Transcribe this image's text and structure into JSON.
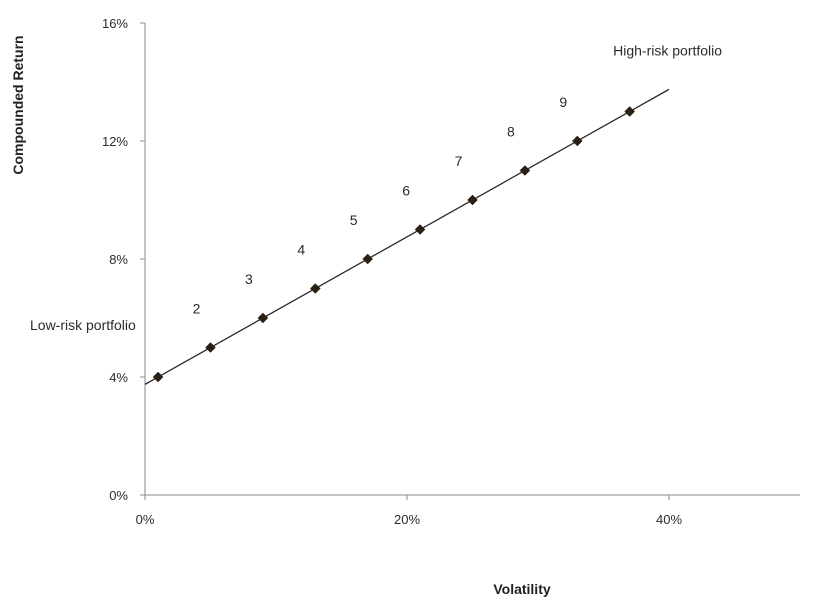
{
  "chart_data": {
    "type": "scatter",
    "xlabel": "Volatility",
    "ylabel": "Compounded Return",
    "xlim": [
      0,
      50
    ],
    "ylim": [
      0,
      16
    ],
    "x_ticks": [
      0,
      20,
      40
    ],
    "x_tick_labels": [
      "0%",
      "20%",
      "40%"
    ],
    "y_ticks": [
      0,
      4,
      8,
      12,
      16
    ],
    "y_tick_labels": [
      "0%",
      "4%",
      "8%",
      "12%",
      "16%"
    ],
    "grid": false,
    "legend": "none",
    "series": [
      {
        "x": [
          1,
          5,
          9,
          13,
          17,
          21,
          25,
          29,
          33,
          37
        ],
        "y": [
          4,
          5,
          6,
          7,
          8,
          9,
          10,
          11,
          12,
          13
        ],
        "point_labels": [
          "",
          "2",
          "3",
          "4",
          "5",
          "6",
          "7",
          "8",
          "9",
          ""
        ],
        "marker": "diamond",
        "color": "#2a2013"
      }
    ],
    "trendline": {
      "x": [
        0,
        40
      ],
      "y": [
        3.75,
        13.75
      ],
      "color": "#2b2b2b"
    },
    "annotations": [
      {
        "text": "Low-risk portfolio",
        "x": 0.5,
        "y": 5.6
      },
      {
        "text": "High-risk portfolio",
        "x": 36.5,
        "y": 14.9
      }
    ]
  }
}
